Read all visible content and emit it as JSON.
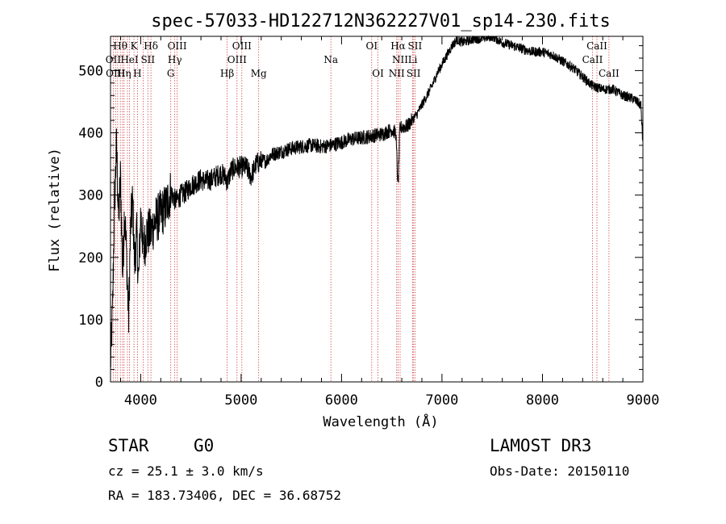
{
  "chart_data": {
    "type": "line",
    "title": "spec-57033-HD122712N362227V01_sp14-230.fits",
    "xlabel": "Wavelength (Å)",
    "ylabel": "Flux (relative)",
    "xlim": [
      3700,
      9000
    ],
    "ylim": [
      0,
      555
    ],
    "xticks": [
      4000,
      5000,
      6000,
      7000,
      8000,
      9000
    ],
    "yticks": [
      0,
      100,
      200,
      300,
      400,
      500
    ],
    "grid": false,
    "series": [
      {
        "name": "flux",
        "x": [
          3700,
          3720,
          3740,
          3760,
          3780,
          3800,
          3820,
          3840,
          3860,
          3880,
          3900,
          3920,
          3940,
          3960,
          3980,
          4000,
          4030,
          4060,
          4100,
          4150,
          4200,
          4250,
          4300,
          4350,
          4400,
          4450,
          4500,
          4550,
          4600,
          4650,
          4700,
          4750,
          4800,
          4850,
          4861,
          4900,
          4950,
          5000,
          5050,
          5100,
          5150,
          5200,
          5250,
          5300,
          5400,
          5500,
          5600,
          5700,
          5800,
          5900,
          6000,
          6100,
          6200,
          6300,
          6400,
          6500,
          6540,
          6563,
          6580,
          6600,
          6650,
          6700,
          6750,
          6800,
          6850,
          6900,
          6950,
          7000,
          7050,
          7100,
          7150,
          7200,
          7300,
          7400,
          7500,
          7600,
          7700,
          7800,
          7900,
          8000,
          8100,
          8200,
          8300,
          8400,
          8500,
          8600,
          8700,
          8800,
          8900,
          8980,
          9000
        ],
        "y": [
          30,
          110,
          290,
          380,
          260,
          330,
          170,
          280,
          200,
          100,
          250,
          290,
          190,
          240,
          160,
          270,
          210,
          240,
          240,
          260,
          270,
          280,
          305,
          290,
          300,
          305,
          315,
          320,
          325,
          322,
          325,
          330,
          335,
          328,
          320,
          340,
          345,
          345,
          345,
          330,
          350,
          355,
          355,
          365,
          370,
          375,
          378,
          380,
          378,
          380,
          385,
          390,
          392,
          395,
          398,
          405,
          400,
          310,
          405,
          410,
          410,
          420,
          430,
          445,
          460,
          475,
          495,
          510,
          525,
          540,
          550,
          545,
          550,
          552,
          555,
          545,
          540,
          535,
          530,
          530,
          525,
          515,
          505,
          490,
          475,
          470,
          470,
          460,
          455,
          445,
          380
        ]
      }
    ],
    "lines": [
      {
        "wl": 3727
      },
      {
        "wl": 3750
      },
      {
        "wl": 3771
      },
      {
        "wl": 3798
      },
      {
        "wl": 3820
      },
      {
        "wl": 3835
      },
      {
        "wl": 3869
      },
      {
        "wl": 3889
      },
      {
        "wl": 3934
      },
      {
        "wl": 3968
      },
      {
        "wl": 4026
      },
      {
        "wl": 4072
      },
      {
        "wl": 4102
      },
      {
        "wl": 4300
      },
      {
        "wl": 4340
      },
      {
        "wl": 4363
      },
      {
        "wl": 4861
      },
      {
        "wl": 4959
      },
      {
        "wl": 5007
      },
      {
        "wl": 5175
      },
      {
        "wl": 5894
      },
      {
        "wl": 6300
      },
      {
        "wl": 6363
      },
      {
        "wl": 6548
      },
      {
        "wl": 6563
      },
      {
        "wl": 6583
      },
      {
        "wl": 6708
      },
      {
        "wl": 6717
      },
      {
        "wl": 6731
      },
      {
        "wl": 8498
      },
      {
        "wl": 8542
      },
      {
        "wl": 8662
      }
    ],
    "line_labels": [
      {
        "text": "Hθ",
        "wl": 3798,
        "row": 1
      },
      {
        "text": "K",
        "wl": 3934,
        "row": 1
      },
      {
        "text": "Hδ",
        "wl": 4102,
        "row": 1
      },
      {
        "text": "OIII",
        "wl": 4363,
        "row": 1
      },
      {
        "text": "OIII",
        "wl": 5007,
        "row": 1
      },
      {
        "text": "OI",
        "wl": 6300,
        "row": 1
      },
      {
        "text": "Hα",
        "wl": 6563,
        "row": 1
      },
      {
        "text": "SII",
        "wl": 6731,
        "row": 1
      },
      {
        "text": "CaII",
        "wl": 8542,
        "row": 1
      },
      {
        "text": "OII",
        "wl": 3727,
        "row": 2
      },
      {
        "text": "HeI",
        "wl": 3889,
        "row": 2
      },
      {
        "text": "SII",
        "wl": 4072,
        "row": 2
      },
      {
        "text": "Hγ",
        "wl": 4340,
        "row": 2
      },
      {
        "text": "OIII",
        "wl": 4959,
        "row": 2
      },
      {
        "text": "Na",
        "wl": 5894,
        "row": 2
      },
      {
        "text": "NII",
        "wl": 6583,
        "row": 2
      },
      {
        "text": "Li",
        "wl": 6708,
        "row": 2
      },
      {
        "text": "CaII",
        "wl": 8498,
        "row": 2
      },
      {
        "text": "OIII",
        "wl": 3750,
        "row": 3
      },
      {
        "text": "Hη",
        "wl": 3835,
        "row": 3
      },
      {
        "text": "H",
        "wl": 3968,
        "row": 3
      },
      {
        "text": "G",
        "wl": 4300,
        "row": 3
      },
      {
        "text": "Hβ",
        "wl": 4861,
        "row": 3
      },
      {
        "text": "Mg",
        "wl": 5175,
        "row": 3
      },
      {
        "text": "OI",
        "wl": 6363,
        "row": 3
      },
      {
        "text": "NII",
        "wl": 6548,
        "row": 3
      },
      {
        "text": "SII",
        "wl": 6717,
        "row": 3
      },
      {
        "text": "CaII",
        "wl": 8662,
        "row": 3
      }
    ],
    "annotations": {
      "object_class": "STAR",
      "subclass": "G0",
      "survey": "LAMOST DR3",
      "redshift": "cz = 25.1 ± 3.0 km/s",
      "obs_date": "Obs-Date: 20150110",
      "coordinates": "RA = 183.73406, DEC =  36.68752"
    }
  }
}
